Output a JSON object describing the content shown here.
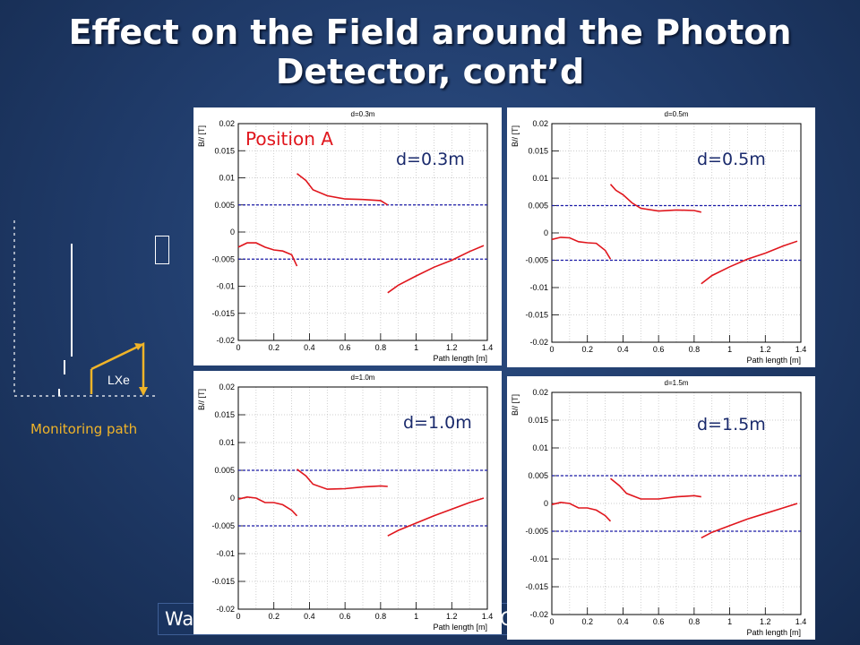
{
  "title_line1": "Effect on the Field around the Photon",
  "title_line2": "Detector, cont’d",
  "diagram": {
    "lxe_label": "LXe",
    "path_label": "Monitoring path"
  },
  "footer": {
    "left": "Wa",
    "right": "G"
  },
  "axis": {
    "ylabel": "B// [T]",
    "xlabel": "Path length [m]",
    "yticks": [
      "0.02",
      "0.015",
      "0.01",
      "0.005",
      "0",
      "-0.005",
      "-0.01",
      "-0.015",
      "-0.02"
    ],
    "xticks": [
      "0",
      "0.2",
      "0.4",
      "0.6",
      "0.8",
      "1",
      "1.2",
      "1.4"
    ]
  },
  "chart_data": [
    {
      "type": "line",
      "title": "d=0.3m",
      "annotation": "d=0.3m",
      "position_label": "Position A",
      "xlim": [
        0,
        1.4
      ],
      "ylim": [
        -0.02,
        0.02
      ],
      "reference_lines": [
        0.005,
        -0.005
      ],
      "series": [
        {
          "x": [
            0.0,
            0.05,
            0.1,
            0.15,
            0.2,
            0.25,
            0.3,
            0.33
          ],
          "y": [
            -0.0028,
            -0.002,
            -0.002,
            -0.0028,
            -0.0033,
            -0.0035,
            -0.0042,
            -0.0063
          ]
        },
        {
          "x": [
            0.33,
            0.38,
            0.42,
            0.5,
            0.6,
            0.7,
            0.8,
            0.84
          ],
          "y": [
            0.0108,
            0.0095,
            0.0078,
            0.0067,
            0.0061,
            0.006,
            0.0058,
            0.005
          ]
        },
        {
          "x": [
            0.84,
            0.9,
            1.0,
            1.1,
            1.2,
            1.3,
            1.38
          ],
          "y": [
            -0.0112,
            -0.0098,
            -0.0081,
            -0.0065,
            -0.0052,
            -0.0036,
            -0.0025
          ]
        }
      ]
    },
    {
      "type": "line",
      "title": "d=0.5m",
      "annotation": "d=0.5m",
      "xlim": [
        0,
        1.4
      ],
      "ylim": [
        -0.02,
        0.02
      ],
      "reference_lines": [
        0.005,
        -0.005
      ],
      "series": [
        {
          "x": [
            0.0,
            0.05,
            0.1,
            0.15,
            0.2,
            0.25,
            0.3,
            0.33
          ],
          "y": [
            -0.0012,
            -0.0008,
            -0.0009,
            -0.0016,
            -0.0018,
            -0.0019,
            -0.0032,
            -0.0048
          ]
        },
        {
          "x": [
            0.33,
            0.36,
            0.4,
            0.45,
            0.5,
            0.6,
            0.7,
            0.8,
            0.84
          ],
          "y": [
            0.0089,
            0.0078,
            0.007,
            0.0055,
            0.0045,
            0.004,
            0.0042,
            0.0041,
            0.0038
          ]
        },
        {
          "x": [
            0.84,
            0.9,
            1.0,
            1.1,
            1.2,
            1.3,
            1.38
          ],
          "y": [
            -0.0093,
            -0.0078,
            -0.0062,
            -0.0048,
            -0.0037,
            -0.0024,
            -0.0015
          ]
        }
      ]
    },
    {
      "type": "line",
      "title": "d=1.0m",
      "annotation": "d=1.0m",
      "xlim": [
        0,
        1.4
      ],
      "ylim": [
        -0.02,
        0.02
      ],
      "reference_lines": [
        0.005,
        -0.005
      ],
      "series": [
        {
          "x": [
            0.0,
            0.05,
            0.1,
            0.15,
            0.2,
            0.25,
            0.3,
            0.33
          ],
          "y": [
            -0.0002,
            0.0002,
            0.0,
            -0.0008,
            -0.0008,
            -0.0012,
            -0.0022,
            -0.0032
          ]
        },
        {
          "x": [
            0.33,
            0.38,
            0.42,
            0.5,
            0.6,
            0.7,
            0.8,
            0.84
          ],
          "y": [
            0.0052,
            0.004,
            0.0025,
            0.0016,
            0.0017,
            0.002,
            0.0022,
            0.0021
          ]
        },
        {
          "x": [
            0.84,
            0.9,
            1.0,
            1.1,
            1.2,
            1.3,
            1.38
          ],
          "y": [
            -0.0068,
            -0.0058,
            -0.0045,
            -0.0032,
            -0.002,
            -0.0008,
            0.0
          ]
        }
      ]
    },
    {
      "type": "line",
      "title": "d=1.5m",
      "annotation": "d=1.5m",
      "xlim": [
        0,
        1.4
      ],
      "ylim": [
        -0.02,
        0.02
      ],
      "reference_lines": [
        0.005,
        -0.005
      ],
      "series": [
        {
          "x": [
            0.0,
            0.05,
            0.1,
            0.15,
            0.2,
            0.25,
            0.3,
            0.33
          ],
          "y": [
            -0.0002,
            0.0002,
            0.0,
            -0.0008,
            -0.0008,
            -0.0012,
            -0.0022,
            -0.0032
          ]
        },
        {
          "x": [
            0.33,
            0.38,
            0.42,
            0.5,
            0.6,
            0.7,
            0.8,
            0.84
          ],
          "y": [
            0.0045,
            0.0032,
            0.0018,
            0.0008,
            0.0008,
            0.0012,
            0.0014,
            0.0012
          ]
        },
        {
          "x": [
            0.84,
            0.9,
            1.0,
            1.1,
            1.2,
            1.3,
            1.38
          ],
          "y": [
            -0.0062,
            -0.0052,
            -0.004,
            -0.0028,
            -0.0018,
            -0.0008,
            0.0
          ]
        }
      ]
    }
  ]
}
